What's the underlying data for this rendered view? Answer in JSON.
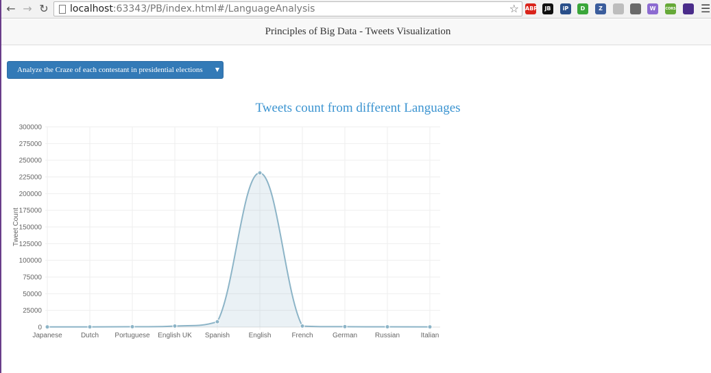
{
  "browser": {
    "url_host": "localhost",
    "url_rest": ":63343/PB/index.html#/LanguageAnalysis",
    "extensions": [
      {
        "name": "adblock-icon",
        "label": "ABP",
        "color": "#d9241b"
      },
      {
        "name": "jetbrains-icon",
        "label": "JB",
        "color": "#111111"
      },
      {
        "name": "ip-icon",
        "label": "iP",
        "color": "#2a4f8a"
      },
      {
        "name": "extension-green-icon",
        "label": "D",
        "color": "#3aa63a"
      },
      {
        "name": "zotero-icon",
        "label": "Z",
        "color": "#3b5d9c"
      },
      {
        "name": "extension-gray-icon",
        "label": "",
        "color": "#bdbdbd"
      },
      {
        "name": "reader-icon",
        "label": "",
        "color": "#6a6a6a"
      },
      {
        "name": "wappalyzer-icon",
        "label": "W",
        "color": "#8c6bd1"
      },
      {
        "name": "cors-icon",
        "label": "CORS",
        "color": "#66a938"
      },
      {
        "name": "extension-purple-icon",
        "label": "",
        "color": "#4a2c8a"
      }
    ]
  },
  "app": {
    "title": "Principles of Big Data - Tweets Visualization"
  },
  "dropdown": {
    "label": "Analyze the Craze of each contestant in presidential elections",
    "caret": "▼"
  },
  "colors": {
    "accent": "#337ab7",
    "title": "#3a93d0",
    "series": "#8cb4c7"
  },
  "chart_data": {
    "type": "area",
    "title": "Tweets count from different Languages",
    "xlabel": "",
    "ylabel": "Tweet Count",
    "categories": [
      "Japanese",
      "Dutch",
      "Portuguese",
      "English UK",
      "Spanish",
      "English",
      "French",
      "German",
      "Russian",
      "Italian"
    ],
    "values": [
      200,
      300,
      500,
      1500,
      8000,
      231000,
      1500,
      600,
      400,
      300
    ],
    "ylim": [
      0,
      300000
    ],
    "yticks": [
      "0",
      "25000",
      "50000",
      "75000",
      "100000",
      "125000",
      "150000",
      "175000",
      "200000",
      "225000",
      "250000",
      "275000",
      "300000"
    ],
    "ytick_values": [
      0,
      25000,
      50000,
      75000,
      100000,
      125000,
      150000,
      175000,
      200000,
      225000,
      250000,
      275000,
      300000
    ],
    "grid": true,
    "legend": "none"
  }
}
